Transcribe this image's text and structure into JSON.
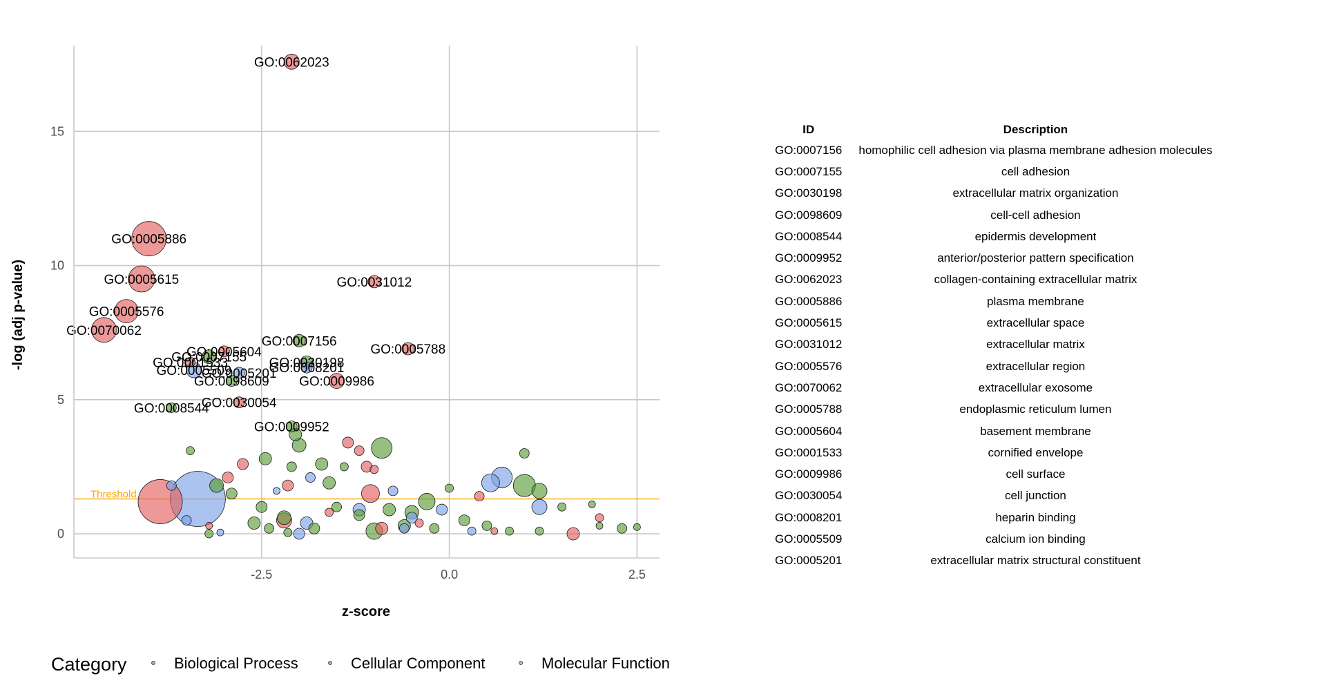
{
  "chart_data": {
    "type": "scatter",
    "title": "",
    "xlabel": "z-score",
    "ylabel": "-log (adj p-value)",
    "xlim": [
      -5,
      2.8
    ],
    "ylim": [
      -0.9,
      18.2
    ],
    "x_ticks": [
      -2.5,
      0.0,
      2.5
    ],
    "x_tick_labels": [
      "-2.5",
      "0.0",
      "2.5"
    ],
    "y_ticks": [
      0,
      5,
      10,
      15
    ],
    "y_tick_labels": [
      "0",
      "5",
      "10",
      "15"
    ],
    "grid": true,
    "threshold": {
      "label": "Threshold",
      "y": 1.3,
      "color": "#FFA500"
    },
    "legend": {
      "title": "Category",
      "position": "bottom"
    },
    "colors": {
      "Biological Process": "#5e9e3a",
      "Cellular Component": "#e36363",
      "Molecular Function": "#7da3e8"
    },
    "series": [
      {
        "name": "Biological Process",
        "points": [
          {
            "x": -2.0,
            "y": 7.2,
            "size": 9,
            "label": "GO:0007156"
          },
          {
            "x": -3.2,
            "y": 6.6,
            "size": 10,
            "label": "GO:0007155"
          },
          {
            "x": -1.9,
            "y": 6.4,
            "size": 9,
            "label": "GO:0030198"
          },
          {
            "x": -2.9,
            "y": 5.7,
            "size": 8,
            "label": "GO:0098609"
          },
          {
            "x": -3.7,
            "y": 4.7,
            "size": 7,
            "label": "GO:0008544"
          },
          {
            "x": -2.1,
            "y": 4.0,
            "size": 8,
            "label": "GO:0009952"
          },
          {
            "x": -2.05,
            "y": 3.7,
            "size": 9
          },
          {
            "x": -2.0,
            "y": 3.3,
            "size": 10
          },
          {
            "x": -0.9,
            "y": 3.2,
            "size": 15
          },
          {
            "x": -2.1,
            "y": 2.5,
            "size": 7
          },
          {
            "x": -1.7,
            "y": 2.6,
            "size": 9
          },
          {
            "x": -3.45,
            "y": 3.1,
            "size": 6
          },
          {
            "x": 1.0,
            "y": 3.0,
            "size": 7
          },
          {
            "x": 1.0,
            "y": 1.8,
            "size": 16
          },
          {
            "x": 1.2,
            "y": 1.6,
            "size": 11
          },
          {
            "x": 0.0,
            "y": 1.7,
            "size": 6
          },
          {
            "x": -0.3,
            "y": 1.2,
            "size": 12
          },
          {
            "x": -0.5,
            "y": 0.8,
            "size": 10
          },
          {
            "x": -0.8,
            "y": 0.9,
            "size": 9
          },
          {
            "x": -1.2,
            "y": 0.7,
            "size": 8
          },
          {
            "x": -1.6,
            "y": 1.9,
            "size": 9
          },
          {
            "x": -1.4,
            "y": 2.5,
            "size": 6
          },
          {
            "x": -2.45,
            "y": 2.8,
            "size": 9
          },
          {
            "x": -2.5,
            "y": 1.0,
            "size": 8
          },
          {
            "x": -3.1,
            "y": 1.8,
            "size": 10
          },
          {
            "x": -2.9,
            "y": 1.5,
            "size": 8
          },
          {
            "x": -2.6,
            "y": 0.4,
            "size": 9
          },
          {
            "x": -2.2,
            "y": 0.6,
            "size": 10
          },
          {
            "x": -1.8,
            "y": 0.2,
            "size": 8
          },
          {
            "x": -1.0,
            "y": 0.1,
            "size": 12
          },
          {
            "x": -0.6,
            "y": 0.3,
            "size": 9
          },
          {
            "x": 0.2,
            "y": 0.5,
            "size": 8
          },
          {
            "x": 0.5,
            "y": 0.3,
            "size": 7
          },
          {
            "x": 0.8,
            "y": 0.1,
            "size": 6
          },
          {
            "x": 1.5,
            "y": 1.0,
            "size": 6
          },
          {
            "x": 1.9,
            "y": 1.1,
            "size": 5
          },
          {
            "x": 2.0,
            "y": 0.3,
            "size": 5
          },
          {
            "x": 2.3,
            "y": 0.2,
            "size": 7
          },
          {
            "x": 2.5,
            "y": 0.25,
            "size": 5
          },
          {
            "x": -3.2,
            "y": 0.0,
            "size": 6
          },
          {
            "x": -2.4,
            "y": 0.2,
            "size": 7
          },
          {
            "x": -2.15,
            "y": 0.05,
            "size": 6
          },
          {
            "x": 1.2,
            "y": 0.1,
            "size": 6
          },
          {
            "x": -1.5,
            "y": 1.0,
            "size": 7
          },
          {
            "x": -0.2,
            "y": 0.2,
            "size": 7
          }
        ]
      },
      {
        "name": "Cellular Component",
        "points": [
          {
            "x": -2.1,
            "y": 17.6,
            "size": 11,
            "label": "GO:0062023"
          },
          {
            "x": -4.0,
            "y": 11.0,
            "size": 25,
            "label": "GO:0005886"
          },
          {
            "x": -4.1,
            "y": 9.5,
            "size": 19,
            "label": "GO:0005615"
          },
          {
            "x": -1.0,
            "y": 9.4,
            "size": 9,
            "label": "GO:0031012"
          },
          {
            "x": -4.3,
            "y": 8.3,
            "size": 17,
            "label": "GO:0005576"
          },
          {
            "x": -4.6,
            "y": 7.6,
            "size": 18,
            "label": "GO:0070062"
          },
          {
            "x": -0.55,
            "y": 6.9,
            "size": 9,
            "label": "GO:0005788"
          },
          {
            "x": -3.0,
            "y": 6.8,
            "size": 8,
            "label": "GO:0005604"
          },
          {
            "x": -3.45,
            "y": 6.4,
            "size": 7,
            "label": "GO:0001533"
          },
          {
            "x": -1.5,
            "y": 5.7,
            "size": 11,
            "label": "GO:0009986"
          },
          {
            "x": -2.8,
            "y": 4.9,
            "size": 8,
            "label": "GO:0030054"
          },
          {
            "x": -3.85,
            "y": 1.2,
            "size": 32
          },
          {
            "x": -1.35,
            "y": 3.4,
            "size": 8
          },
          {
            "x": -1.2,
            "y": 3.1,
            "size": 7
          },
          {
            "x": -2.75,
            "y": 2.6,
            "size": 8
          },
          {
            "x": -2.95,
            "y": 2.1,
            "size": 8
          },
          {
            "x": -1.1,
            "y": 2.5,
            "size": 8
          },
          {
            "x": -1.0,
            "y": 2.4,
            "size": 6
          },
          {
            "x": -2.15,
            "y": 1.8,
            "size": 8
          },
          {
            "x": -1.05,
            "y": 1.5,
            "size": 13
          },
          {
            "x": 0.4,
            "y": 1.4,
            "size": 7
          },
          {
            "x": -2.2,
            "y": 0.5,
            "size": 11
          },
          {
            "x": -0.9,
            "y": 0.2,
            "size": 9
          },
          {
            "x": 1.65,
            "y": 0.0,
            "size": 9
          },
          {
            "x": 2.0,
            "y": 0.6,
            "size": 6
          },
          {
            "x": -3.2,
            "y": 0.3,
            "size": 5
          },
          {
            "x": -1.6,
            "y": 0.8,
            "size": 6
          },
          {
            "x": -0.4,
            "y": 0.4,
            "size": 6
          },
          {
            "x": 0.6,
            "y": 0.1,
            "size": 5
          }
        ]
      },
      {
        "name": "Molecular Function",
        "points": [
          {
            "x": -1.9,
            "y": 6.2,
            "size": 8,
            "label": "GO:0008201"
          },
          {
            "x": -3.4,
            "y": 6.1,
            "size": 11,
            "label": "GO:0005509"
          },
          {
            "x": -2.8,
            "y": 6.0,
            "size": 8,
            "label": "GO:0005201"
          },
          {
            "x": -3.35,
            "y": 1.3,
            "size": 40
          },
          {
            "x": 0.7,
            "y": 2.1,
            "size": 15
          },
          {
            "x": 0.55,
            "y": 1.9,
            "size": 13
          },
          {
            "x": 1.2,
            "y": 1.0,
            "size": 11
          },
          {
            "x": -1.85,
            "y": 2.1,
            "size": 7
          },
          {
            "x": -3.7,
            "y": 1.8,
            "size": 7
          },
          {
            "x": -0.75,
            "y": 1.6,
            "size": 7
          },
          {
            "x": -2.3,
            "y": 1.6,
            "size": 5
          },
          {
            "x": -3.5,
            "y": 0.5,
            "size": 7
          },
          {
            "x": -1.2,
            "y": 0.9,
            "size": 9
          },
          {
            "x": -0.5,
            "y": 0.6,
            "size": 8
          },
          {
            "x": -0.1,
            "y": 0.9,
            "size": 8
          },
          {
            "x": -1.9,
            "y": 0.4,
            "size": 9
          },
          {
            "x": 0.3,
            "y": 0.1,
            "size": 6
          },
          {
            "x": -2.0,
            "y": 0.0,
            "size": 8
          },
          {
            "x": -0.6,
            "y": 0.2,
            "size": 7
          },
          {
            "x": -3.05,
            "y": 0.05,
            "size": 5
          }
        ]
      }
    ]
  },
  "table": {
    "headers": [
      "ID",
      "Description"
    ],
    "rows": [
      [
        "GO:0007156",
        "homophilic cell adhesion via plasma membrane adhesion molecules"
      ],
      [
        "GO:0007155",
        "cell adhesion"
      ],
      [
        "GO:0030198",
        "extracellular matrix organization"
      ],
      [
        "GO:0098609",
        "cell-cell adhesion"
      ],
      [
        "GO:0008544",
        "epidermis development"
      ],
      [
        "GO:0009952",
        "anterior/posterior pattern specification"
      ],
      [
        "GO:0062023",
        "collagen-containing extracellular matrix"
      ],
      [
        "GO:0005886",
        "plasma membrane"
      ],
      [
        "GO:0005615",
        "extracellular space"
      ],
      [
        "GO:0031012",
        "extracellular matrix"
      ],
      [
        "GO:0005576",
        "extracellular region"
      ],
      [
        "GO:0070062",
        "extracellular exosome"
      ],
      [
        "GO:0005788",
        "endoplasmic reticulum lumen"
      ],
      [
        "GO:0005604",
        "basement membrane"
      ],
      [
        "GO:0001533",
        "cornified envelope"
      ],
      [
        "GO:0009986",
        "cell surface"
      ],
      [
        "GO:0030054",
        "cell junction"
      ],
      [
        "GO:0008201",
        "heparin binding"
      ],
      [
        "GO:0005509",
        "calcium ion binding"
      ],
      [
        "GO:0005201",
        "extracellular matrix structural constituent"
      ]
    ]
  }
}
